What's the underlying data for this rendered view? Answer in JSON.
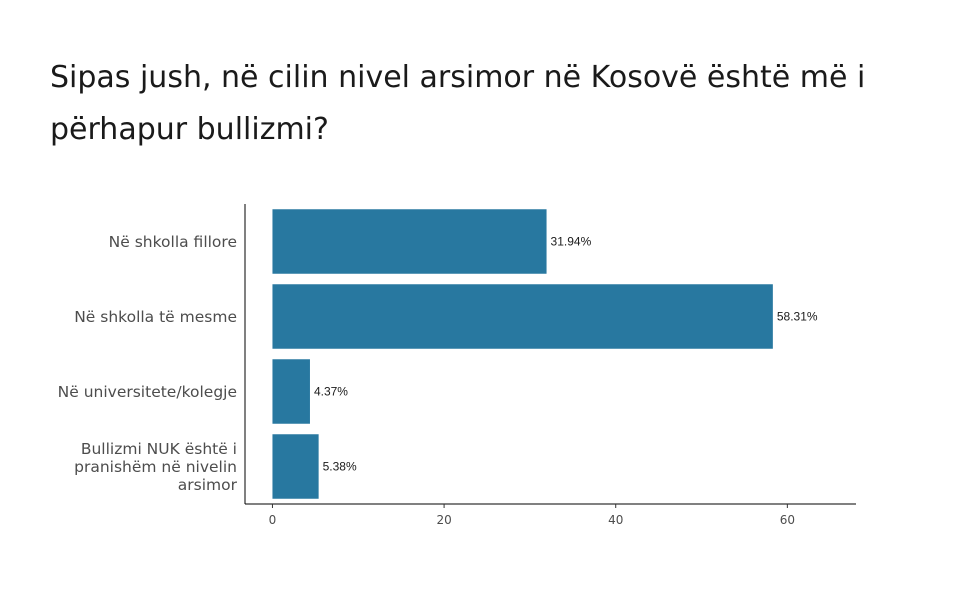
{
  "chart_data": {
    "type": "bar",
    "orientation": "horizontal",
    "title": "Sipas jush, në cilin nivel arsimor në Kosovë është më i përhapur bullizmi?",
    "categories": [
      "Në shkolla fillore",
      "Në shkolla të mesme",
      "Në universitete/kolegje",
      "Bullizmi NUK është i pranishëm në nivelin arsimor"
    ],
    "category_label_lines": [
      [
        "Në shkolla fillore"
      ],
      [
        "Në shkolla të mesme"
      ],
      [
        "Në universitete/kolegje"
      ],
      [
        "Bullizmi NUK është i",
        "pranishëm në nivelin",
        "arsimor"
      ]
    ],
    "values": [
      31.94,
      58.31,
      4.37,
      5.38
    ],
    "value_labels": [
      "31.94%",
      "58.31%",
      "4.37%",
      "5.38%"
    ],
    "xlim": [
      -3.2,
      68
    ],
    "xticks": [
      0,
      20,
      40,
      60
    ],
    "xtick_labels": [
      "0",
      "20",
      "40",
      "60"
    ],
    "xlabel": "",
    "ylabel": "",
    "grid": false,
    "bar_color": "#2878a0"
  }
}
